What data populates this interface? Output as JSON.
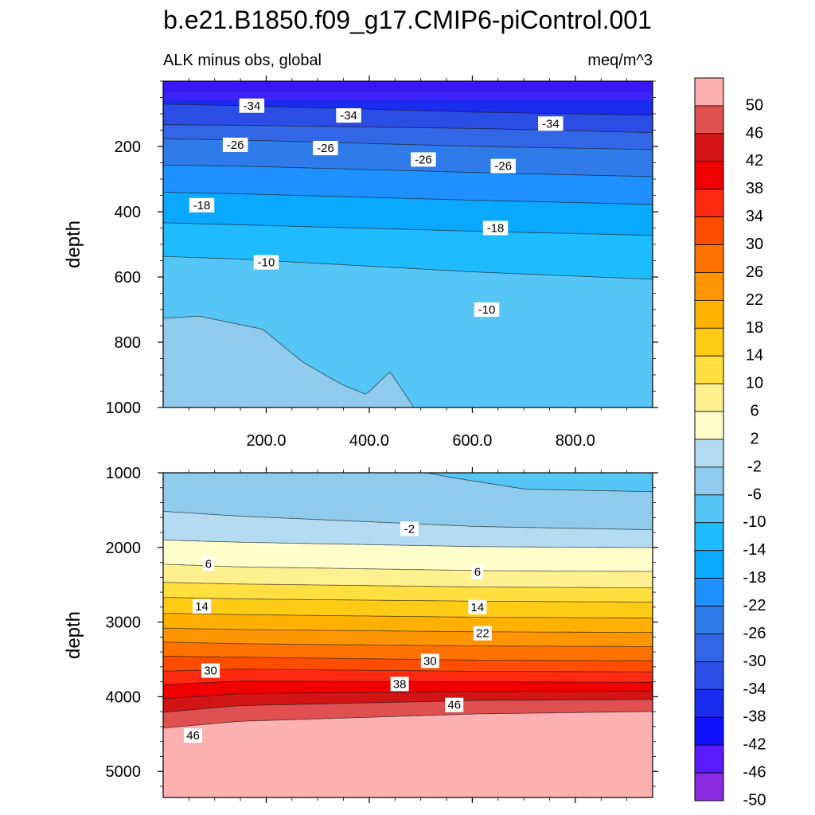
{
  "chart_data": {
    "type": "contour",
    "title": "b.e21.B1850.f09_g17.CMIP6-piControl.001",
    "left_subtitle": "ALK minus obs, global",
    "right_subtitle": "meq/m^3",
    "x_tick_labels": [
      "200.0",
      "400.0",
      "600.0",
      "800.0"
    ],
    "x_range": [
      0,
      950
    ],
    "colorbar": {
      "levels": [
        -50,
        -46,
        -42,
        -38,
        -34,
        -30,
        -26,
        -22,
        -18,
        -14,
        -10,
        -6,
        -2,
        2,
        6,
        10,
        14,
        18,
        22,
        26,
        30,
        34,
        38,
        42,
        46,
        50
      ],
      "labels": [
        "-50",
        "-46",
        "-42",
        "-38",
        "-34",
        "-30",
        "-26",
        "-22",
        "-18",
        "-14",
        "-10",
        "-6",
        "-2",
        "2",
        "6",
        "10",
        "14",
        "18",
        "22",
        "26",
        "30",
        "34",
        "38",
        "42",
        "46",
        "50"
      ],
      "colors": [
        "#8a2be2",
        "#5a1cff",
        "#1010ff",
        "#1a2cf0",
        "#2a4de6",
        "#3366e6",
        "#2e7be9",
        "#1e90ff",
        "#0aa8ff",
        "#1ebbff",
        "#55c6f6",
        "#8ecbec",
        "#b3dcf2",
        "#ffffcc",
        "#fff090",
        "#ffe040",
        "#ffcc15",
        "#ffb000",
        "#ff9500",
        "#ff7200",
        "#ff4d00",
        "#ff2a10",
        "#f00000",
        "#d21414",
        "#e05050",
        "#ffb0b0"
      ]
    },
    "panels": [
      {
        "name": "upper",
        "ylabel": "depth",
        "y_range": [
          0,
          1000
        ],
        "y_tick_labels": [
          "200",
          "400",
          "600",
          "800",
          "1000"
        ],
        "contour_labels": [
          {
            "text": "-34",
            "x": 172,
            "y": 75
          },
          {
            "text": "-34",
            "x": 360,
            "y": 105
          },
          {
            "text": "-34",
            "x": 752,
            "y": 130
          },
          {
            "text": "-26",
            "x": 140,
            "y": 195
          },
          {
            "text": "-26",
            "x": 315,
            "y": 205
          },
          {
            "text": "-26",
            "x": 505,
            "y": 240
          },
          {
            "text": "-26",
            "x": 660,
            "y": 260
          },
          {
            "text": "-18",
            "x": 75,
            "y": 380
          },
          {
            "text": "-18",
            "x": 645,
            "y": 450
          },
          {
            "text": "-10",
            "x": 200,
            "y": 555
          },
          {
            "text": "-10",
            "x": 628,
            "y": 700
          }
        ]
      },
      {
        "name": "lower",
        "ylabel": "depth",
        "y_range": [
          1000,
          5350
        ],
        "y_tick_labels": [
          "1000",
          "2000",
          "3000",
          "4000",
          "5000"
        ],
        "contour_labels": [
          {
            "text": "-2",
            "x": 478,
            "y": 1750
          },
          {
            "text": "6",
            "x": 88,
            "y": 2220
          },
          {
            "text": "6",
            "x": 610,
            "y": 2330
          },
          {
            "text": "14",
            "x": 75,
            "y": 2790
          },
          {
            "text": "14",
            "x": 610,
            "y": 2800
          },
          {
            "text": "22",
            "x": 620,
            "y": 3150
          },
          {
            "text": "30",
            "x": 92,
            "y": 3650
          },
          {
            "text": "30",
            "x": 518,
            "y": 3520
          },
          {
            "text": "38",
            "x": 459,
            "y": 3830
          },
          {
            "text": "46",
            "x": 565,
            "y": 4110
          },
          {
            "text": "46",
            "x": 58,
            "y": 4520
          }
        ]
      }
    ]
  }
}
